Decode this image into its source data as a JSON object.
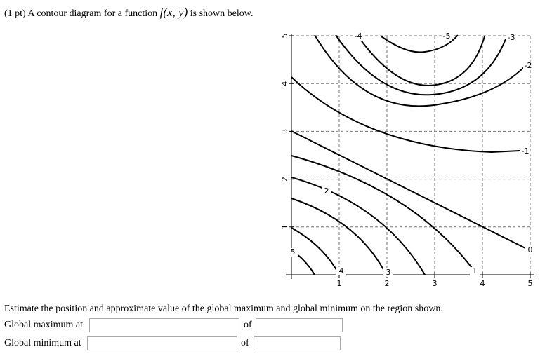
{
  "header": {
    "prefix": "(1 pt) A contour diagram for a function",
    "math": "f(x, y)",
    "suffix": "is shown below."
  },
  "plot": {
    "xlim": [
      0,
      5
    ],
    "ylim": [
      0,
      5
    ],
    "xticks": [
      1,
      2,
      3,
      4,
      5
    ],
    "yticks": [
      1,
      2,
      3,
      4,
      5
    ],
    "grid": true,
    "contour_levels": [
      5,
      4,
      3,
      2,
      1,
      0,
      -1,
      -2,
      -3,
      -4,
      -5
    ]
  },
  "question": "Estimate the position and approximate value of the global maximum and global minimum on the region shown.",
  "answers": [
    {
      "label": "Global maximum at",
      "of": "of"
    },
    {
      "label": "Global minimum at",
      "of": "of"
    }
  ]
}
